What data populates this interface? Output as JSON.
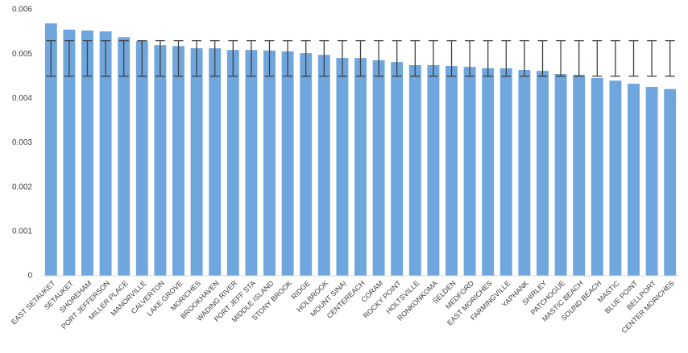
{
  "chart_data": {
    "type": "bar",
    "categories": [
      "EAST SETAUKET",
      "SETAUKET",
      "SHOREHAM",
      "PORT JEFFERSON",
      "MILLER PLACE",
      "MANORVILLE",
      "CALVERTON",
      "LAKE GROVE",
      "MORICHES",
      "BROOKHAVEN",
      "WADING RIVER",
      "PORT JEFF STA",
      "MIDDLE ISLAND",
      "STONY BROOK",
      "RIDGE",
      "HOLBROOK",
      "MOUNT SINAI",
      "CENTEREACH",
      "CORAM",
      "ROCKY POINT",
      "HOLTSVILLE",
      "RONKONKOMA",
      "SELDEN",
      "MEDFORD",
      "EAST MORICHES",
      "FARMINGVILLE",
      "YAPHANK",
      "SHIRLEY",
      "PATCHOGUE",
      "MASTIC BEACH",
      "SOUND BEACH",
      "MASTIC",
      "BLUE POINT",
      "BELLPORT",
      "CENTER MORICHES"
    ],
    "values": [
      0.00569,
      0.00555,
      0.00553,
      0.00551,
      0.00538,
      0.00529,
      0.0052,
      0.00518,
      0.00513,
      0.00513,
      0.00509,
      0.00509,
      0.00508,
      0.00506,
      0.00502,
      0.00498,
      0.00491,
      0.00491,
      0.00486,
      0.00482,
      0.00475,
      0.00475,
      0.00473,
      0.00471,
      0.00468,
      0.00468,
      0.00464,
      0.00462,
      0.00455,
      0.00453,
      0.00446,
      0.0044,
      0.00433,
      0.00426,
      0.00421
    ],
    "color": "#6fa6dd",
    "error_bar": {
      "center": 0.0049,
      "error": 0.0004,
      "color": "#404040"
    },
    "ylim": [
      0,
      0.006
    ],
    "yticks": [
      0,
      0.001,
      0.002,
      0.003,
      0.004,
      0.005,
      0.006
    ],
    "grid": false
  }
}
